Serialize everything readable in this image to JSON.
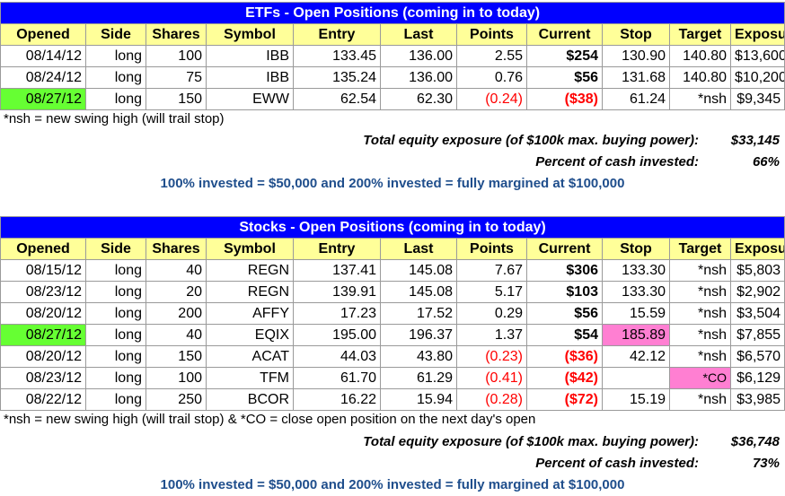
{
  "colors": {
    "title_bg": "#0000ff",
    "header_bg": "#ffff99",
    "green_highlight": "#66ff33",
    "pink_highlight": "#ff7fd2",
    "negative": "#ff0000",
    "blue_text": "#1f4e8c"
  },
  "columns": [
    "Opened",
    "Side",
    "Shares",
    "Symbol",
    "Entry",
    "Last",
    "Points",
    "Current",
    "Stop",
    "Target",
    "Exposure"
  ],
  "etfs": {
    "title": "ETFs - Open Positions (coming in to today)",
    "rows": [
      {
        "opened": "08/14/12",
        "side": "long",
        "shares": "100",
        "symbol": "IBB",
        "entry": "133.45",
        "last": "136.00",
        "points": "2.55",
        "current": "$254",
        "stop": "130.90",
        "target": "140.80",
        "exposure": "$13,600"
      },
      {
        "opened": "08/24/12",
        "side": "long",
        "shares": "75",
        "symbol": "IBB",
        "entry": "135.24",
        "last": "136.00",
        "points": "0.76",
        "current": "$56",
        "stop": "131.68",
        "target": "140.80",
        "exposure": "$10,200"
      },
      {
        "opened": "08/27/12",
        "side": "long",
        "shares": "150",
        "symbol": "EWW",
        "entry": "62.54",
        "last": "62.30",
        "points": "(0.24)",
        "current": "($38)",
        "stop": "61.24",
        "target": "*nsh",
        "exposure": "$9,345"
      }
    ],
    "note": "*nsh = new swing high (will trail stop)",
    "total_label": "Total equity exposure (of $100k max. buying power):",
    "total_value": "$33,145",
    "percent_label": "Percent of cash invested:",
    "percent_value": "66%",
    "invested_note": "100% invested = $50,000 and 200% invested = fully margined at $100,000"
  },
  "stocks": {
    "title": "Stocks - Open Positions (coming in to today)",
    "rows": [
      {
        "opened": "08/15/12",
        "side": "long",
        "shares": "40",
        "symbol": "REGN",
        "entry": "137.41",
        "last": "145.08",
        "points": "7.67",
        "current": "$306",
        "stop": "133.30",
        "target": "*nsh",
        "exposure": "$5,803"
      },
      {
        "opened": "08/23/12",
        "side": "long",
        "shares": "20",
        "symbol": "REGN",
        "entry": "139.91",
        "last": "145.08",
        "points": "5.17",
        "current": "$103",
        "stop": "133.30",
        "target": "*nsh",
        "exposure": "$2,902"
      },
      {
        "opened": "08/20/12",
        "side": "long",
        "shares": "200",
        "symbol": "AFFY",
        "entry": "17.23",
        "last": "17.52",
        "points": "0.29",
        "current": "$56",
        "stop": "15.59",
        "target": "*nsh",
        "exposure": "$3,504"
      },
      {
        "opened": "08/27/12",
        "side": "long",
        "shares": "40",
        "symbol": "EQIX",
        "entry": "195.00",
        "last": "196.37",
        "points": "1.37",
        "current": "$54",
        "stop": "185.89",
        "target": "*nsh",
        "exposure": "$7,855"
      },
      {
        "opened": "08/20/12",
        "side": "long",
        "shares": "150",
        "symbol": "ACAT",
        "entry": "44.03",
        "last": "43.80",
        "points": "(0.23)",
        "current": "($36)",
        "stop": "42.12",
        "target": "*nsh",
        "exposure": "$6,570"
      },
      {
        "opened": "08/23/12",
        "side": "long",
        "shares": "100",
        "symbol": "TFM",
        "entry": "61.70",
        "last": "61.29",
        "points": "(0.41)",
        "current": "($42)",
        "stop": "",
        "target": "*CO",
        "exposure": "$6,129"
      },
      {
        "opened": "08/22/12",
        "side": "long",
        "shares": "250",
        "symbol": "BCOR",
        "entry": "16.22",
        "last": "15.94",
        "points": "(0.28)",
        "current": "($72)",
        "stop": "15.19",
        "target": "*nsh",
        "exposure": "$3,985"
      }
    ],
    "note": "*nsh = new swing high (will trail stop)     &     *CO = close open position on the next day's open",
    "total_label": "Total equity exposure (of $100k max. buying power):",
    "total_value": "$36,748",
    "percent_label": "Percent of cash invested:",
    "percent_value": "73%",
    "invested_note": "100% invested = $50,000 and 200% invested = fully margined at $100,000"
  }
}
